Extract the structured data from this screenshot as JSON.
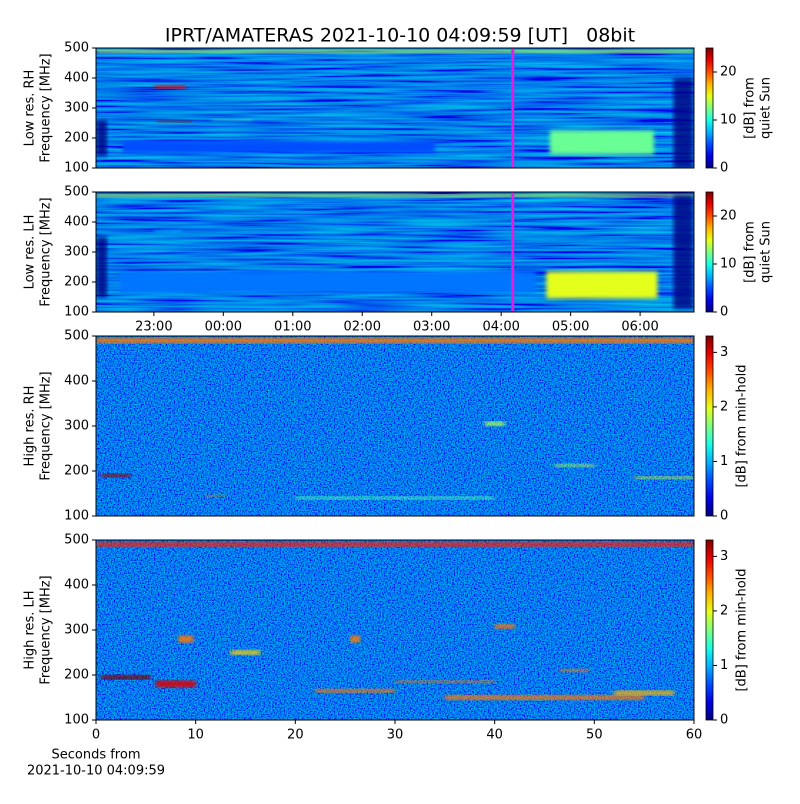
{
  "title": "IPRT/AMATERAS 2021-10-10 04:09:59 [UT]   08bit",
  "xlabel": [
    "Seconds from",
    "2021-10-10 04:09:59"
  ],
  "chart_data": [
    {
      "type": "heatmap",
      "ylabel": [
        "Low res. RH",
        "Frequency [MHz]"
      ],
      "xlim": [
        -1.833,
        6.776
      ],
      "ylim": [
        100,
        500
      ],
      "yticks": [
        100,
        200,
        300,
        400,
        500
      ],
      "marker": 4.1664,
      "marker_color": "#e020e0",
      "colorbar": {
        "label": [
          "[dB] from",
          "quiet Sun"
        ],
        "lim": [
          0,
          25
        ],
        "ticks": [
          0,
          10,
          20
        ]
      },
      "bursts": [
        {
          "x": 2.47,
          "y": 488,
          "w": 8.6,
          "h": 10,
          "value": 14
        },
        {
          "x": -0.77,
          "y": 370,
          "w": 0.45,
          "h": 12,
          "value": 22
        },
        {
          "x": -0.7,
          "y": 255,
          "w": 0.5,
          "h": 6,
          "value": 25
        },
        {
          "x": 0.13,
          "y": 260,
          "w": 0.6,
          "h": 6,
          "value": 11
        },
        {
          "x": 5.45,
          "y": 185,
          "w": 1.5,
          "h": 80,
          "value": 12
        },
        {
          "x": 0.8,
          "y": 170,
          "w": 4.5,
          "h": 40,
          "value": 5
        },
        {
          "x": -1.75,
          "y": 200,
          "w": 0.15,
          "h": 120,
          "value": 0
        },
        {
          "x": 6.62,
          "y": 250,
          "w": 0.28,
          "h": 300,
          "value": 0
        }
      ]
    },
    {
      "type": "heatmap",
      "ylabel": [
        "Low res. LH",
        "Frequency [MHz]"
      ],
      "xlim": [
        -1.833,
        6.776
      ],
      "ylim": [
        100,
        500
      ],
      "yticks": [
        100,
        200,
        300,
        400,
        500
      ],
      "marker": 4.1664,
      "marker_color": "#e020e0",
      "xticks": [
        {
          "value": -1,
          "label": "23:00"
        },
        {
          "value": 0,
          "label": "00:00"
        },
        {
          "value": 1,
          "label": "01:00"
        },
        {
          "value": 2,
          "label": "02:00"
        },
        {
          "value": 3,
          "label": "03:00"
        },
        {
          "value": 4,
          "label": "04:00"
        },
        {
          "value": 5,
          "label": "05:00"
        },
        {
          "value": 6,
          "label": "06:00"
        }
      ],
      "colorbar": {
        "label": [
          "[dB] from",
          "quiet Sun"
        ],
        "lim": [
          0,
          25
        ],
        "ticks": [
          0,
          10,
          20
        ]
      },
      "bursts": [
        {
          "x": 2.47,
          "y": 488,
          "w": 8.6,
          "h": 8,
          "value": 15
        },
        {
          "x": -0.8,
          "y": 370,
          "w": 0.4,
          "h": 8,
          "value": 8
        },
        {
          "x": 5.45,
          "y": 190,
          "w": 1.6,
          "h": 90,
          "value": 15
        },
        {
          "x": 1.5,
          "y": 200,
          "w": 6,
          "h": 70,
          "value": 6
        },
        {
          "x": -1.75,
          "y": 250,
          "w": 0.15,
          "h": 200,
          "value": 0
        },
        {
          "x": 6.62,
          "y": 300,
          "w": 0.28,
          "h": 380,
          "value": 0
        }
      ]
    },
    {
      "type": "heatmap",
      "ylabel": [
        "High res. RH",
        "Frequency [MHz]"
      ],
      "xlim": [
        0,
        60
      ],
      "ylim": [
        100,
        500
      ],
      "yticks": [
        100,
        200,
        300,
        400,
        500
      ],
      "colorbar": {
        "label": [
          "[dB] from min-hold"
        ],
        "lim": [
          0,
          3.3
        ],
        "ticks": [
          0,
          1,
          2,
          3
        ]
      },
      "bursts": [
        {
          "x": 30,
          "y": 490,
          "w": 60,
          "h": 12,
          "value": 2.5
        },
        {
          "x": 2,
          "y": 190,
          "w": 3,
          "h": 8,
          "value": 3.2
        },
        {
          "x": 48,
          "y": 212,
          "w": 4,
          "h": 6,
          "value": 1.8
        },
        {
          "x": 57,
          "y": 185,
          "w": 6,
          "h": 5,
          "value": 2
        },
        {
          "x": 40,
          "y": 305,
          "w": 2,
          "h": 10,
          "value": 1.8
        },
        {
          "x": 30,
          "y": 140,
          "w": 20,
          "h": 6,
          "value": 1.5
        },
        {
          "x": 12,
          "y": 145,
          "w": 2,
          "h": 4,
          "value": 2.5
        }
      ]
    },
    {
      "type": "heatmap",
      "ylabel": [
        "High res. LH",
        "Frequency [MHz]"
      ],
      "xlim": [
        0,
        60
      ],
      "ylim": [
        100,
        500
      ],
      "yticks": [
        100,
        200,
        300,
        400,
        500
      ],
      "xticks": [
        0,
        10,
        20,
        30,
        40,
        50,
        60
      ],
      "colorbar": {
        "label": [
          "[dB] from min-hold"
        ],
        "lim": [
          0,
          3.3
        ],
        "ticks": [
          0,
          1,
          2,
          3
        ]
      },
      "bursts": [
        {
          "x": 30,
          "y": 490,
          "w": 60,
          "h": 10,
          "value": 2.8
        },
        {
          "x": 3,
          "y": 195,
          "w": 5,
          "h": 10,
          "value": 3.3
        },
        {
          "x": 8,
          "y": 180,
          "w": 4,
          "h": 15,
          "value": 3
        },
        {
          "x": 26,
          "y": 165,
          "w": 8,
          "h": 8,
          "value": 2.5
        },
        {
          "x": 35,
          "y": 185,
          "w": 10,
          "h": 5,
          "value": 2.5
        },
        {
          "x": 48,
          "y": 210,
          "w": 3,
          "h": 6,
          "value": 2.5
        },
        {
          "x": 45,
          "y": 150,
          "w": 20,
          "h": 10,
          "value": 2.5
        },
        {
          "x": 55,
          "y": 160,
          "w": 6,
          "h": 10,
          "value": 2.3
        },
        {
          "x": 9,
          "y": 280,
          "w": 1.5,
          "h": 15,
          "value": 2.5
        },
        {
          "x": 26,
          "y": 280,
          "w": 1,
          "h": 15,
          "value": 2.5
        },
        {
          "x": 41,
          "y": 308,
          "w": 2,
          "h": 10,
          "value": 2.5
        },
        {
          "x": 15,
          "y": 250,
          "w": 3,
          "h": 10,
          "value": 2.2
        }
      ]
    }
  ]
}
